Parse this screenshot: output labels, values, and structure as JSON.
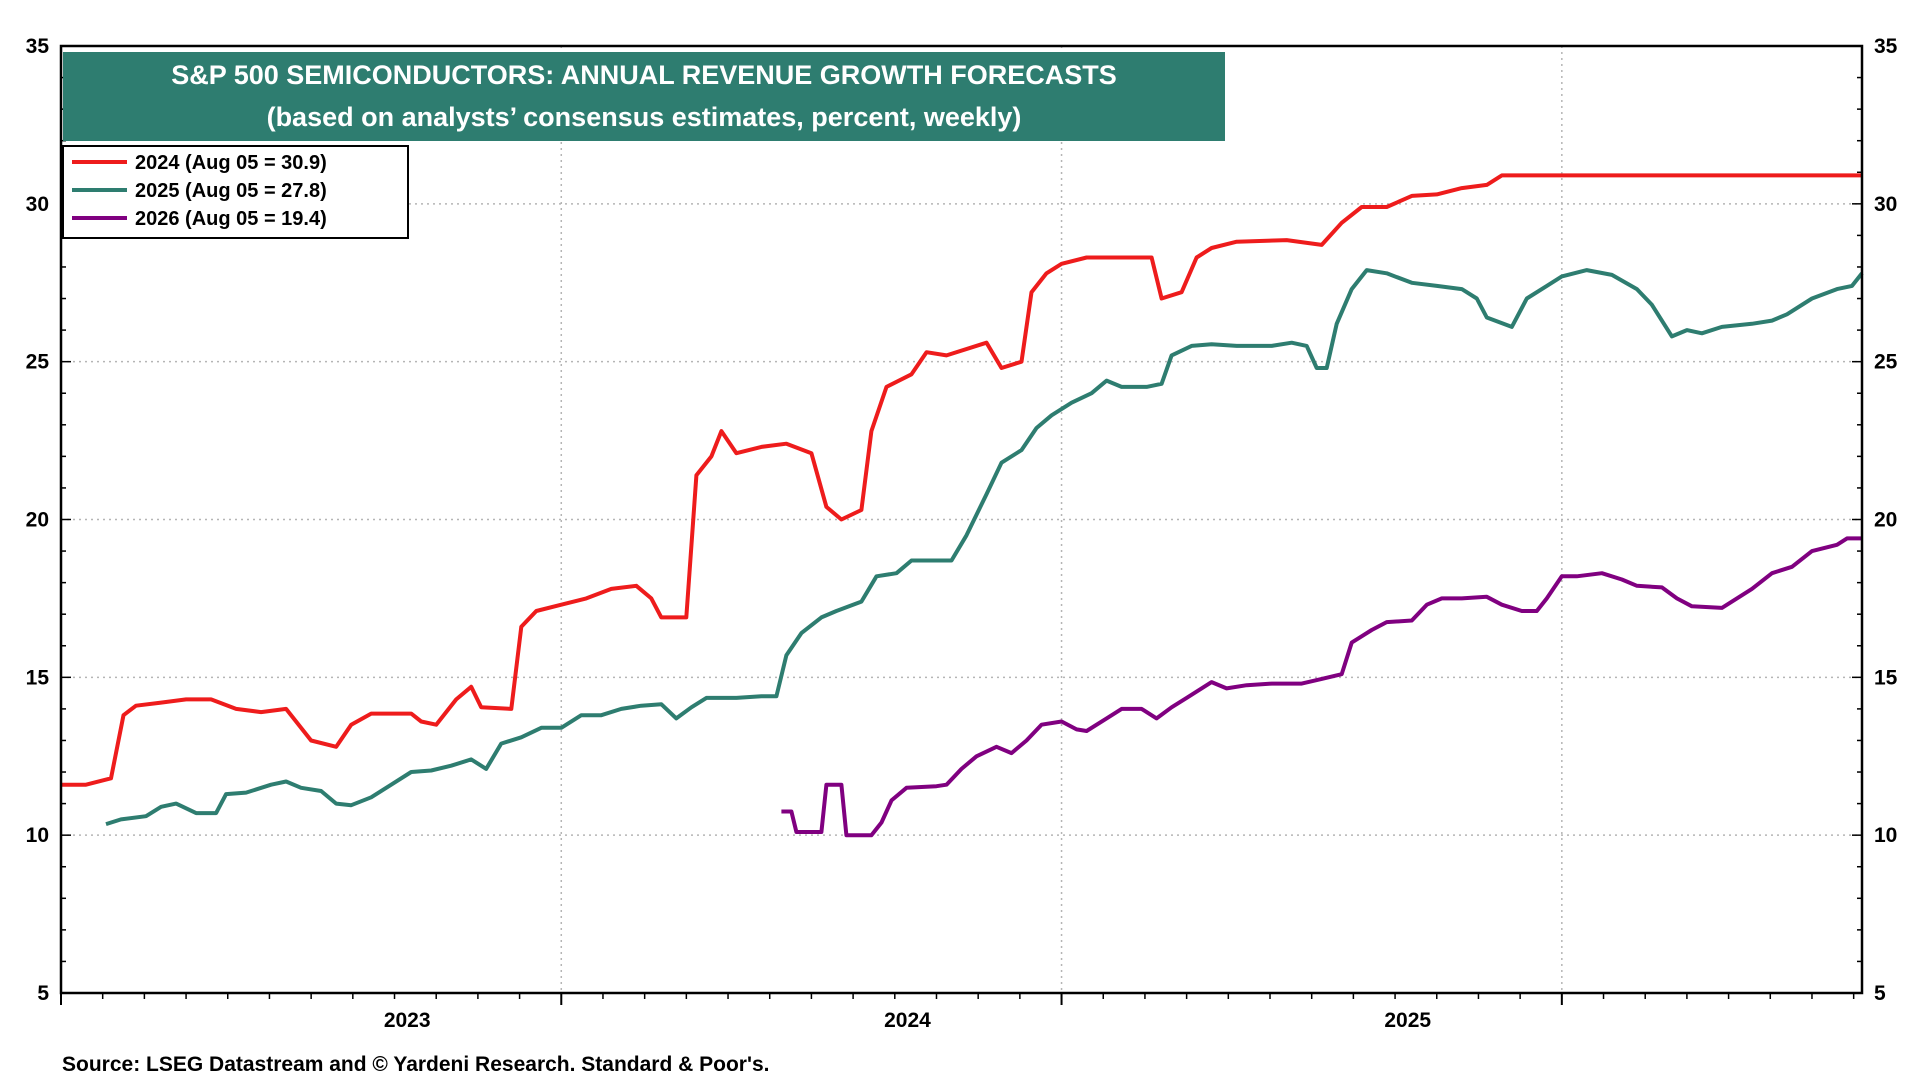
{
  "chart_data": {
    "type": "line",
    "title": "S&P 500 SEMICONDUCTORS: ANNUAL REVENUE GROWTH FORECASTS",
    "subtitle": "(based on analysts’ consensus estimates, percent, weekly)",
    "source": "Source: LSEG Datastream and © Yardeni Research. Standard & Poor's.",
    "xlabel": "",
    "ylabel": "",
    "x_range": [
      2022.0,
      2025.6
    ],
    "ylim": [
      5,
      35
    ],
    "y_ticks": [
      "5",
      "10",
      "15",
      "20",
      "25",
      "30",
      "35"
    ],
    "x_year_labels": [
      {
        "label": "2023",
        "x": 2022.692
      },
      {
        "label": "2024",
        "x": 2023.692
      },
      {
        "label": "2025",
        "x": 2024.692
      }
    ],
    "x_year_boundaries": [
      2022.0,
      2023.0,
      2024.0,
      2025.0
    ],
    "grid": true,
    "legend_position": "top-left",
    "series": [
      {
        "name": "2024",
        "legend": "2024 (Aug 05 = 30.9)",
        "color": "#ee1c1c",
        "points": [
          [
            2022.0,
            11.6
          ],
          [
            2022.05,
            11.6
          ],
          [
            2022.1,
            11.8
          ],
          [
            2022.125,
            13.8
          ],
          [
            2022.15,
            14.1
          ],
          [
            2022.2,
            14.2
          ],
          [
            2022.25,
            14.3
          ],
          [
            2022.3,
            14.3
          ],
          [
            2022.35,
            14.0
          ],
          [
            2022.4,
            13.9
          ],
          [
            2022.45,
            14.0
          ],
          [
            2022.5,
            13.0
          ],
          [
            2022.55,
            12.8
          ],
          [
            2022.58,
            13.5
          ],
          [
            2022.62,
            13.85
          ],
          [
            2022.7,
            13.85
          ],
          [
            2022.72,
            13.6
          ],
          [
            2022.75,
            13.5
          ],
          [
            2022.79,
            14.3
          ],
          [
            2022.82,
            14.7
          ],
          [
            2022.84,
            14.05
          ],
          [
            2022.9,
            14.0
          ],
          [
            2022.92,
            16.6
          ],
          [
            2022.95,
            17.1
          ],
          [
            2023.0,
            17.3
          ],
          [
            2023.05,
            17.5
          ],
          [
            2023.1,
            17.8
          ],
          [
            2023.15,
            17.9
          ],
          [
            2023.18,
            17.5
          ],
          [
            2023.2,
            16.9
          ],
          [
            2023.25,
            16.9
          ],
          [
            2023.27,
            21.4
          ],
          [
            2023.3,
            22.0
          ],
          [
            2023.32,
            22.8
          ],
          [
            2023.35,
            22.1
          ],
          [
            2023.4,
            22.3
          ],
          [
            2023.45,
            22.4
          ],
          [
            2023.5,
            22.1
          ],
          [
            2023.53,
            20.4
          ],
          [
            2023.56,
            20.0
          ],
          [
            2023.6,
            20.3
          ],
          [
            2023.62,
            22.8
          ],
          [
            2023.65,
            24.2
          ],
          [
            2023.7,
            24.6
          ],
          [
            2023.73,
            25.3
          ],
          [
            2023.77,
            25.2
          ],
          [
            2023.85,
            25.6
          ],
          [
            2023.88,
            24.8
          ],
          [
            2023.92,
            25.0
          ],
          [
            2023.94,
            27.2
          ],
          [
            2023.97,
            27.8
          ],
          [
            2024.0,
            28.1
          ],
          [
            2024.05,
            28.3
          ],
          [
            2024.15,
            28.3
          ],
          [
            2024.18,
            28.3
          ],
          [
            2024.2,
            27.0
          ],
          [
            2024.24,
            27.2
          ],
          [
            2024.27,
            28.3
          ],
          [
            2024.3,
            28.6
          ],
          [
            2024.35,
            28.8
          ],
          [
            2024.45,
            28.85
          ],
          [
            2024.52,
            28.7
          ],
          [
            2024.56,
            29.4
          ],
          [
            2024.6,
            29.9
          ],
          [
            2024.65,
            29.9
          ],
          [
            2024.7,
            30.25
          ],
          [
            2024.75,
            30.3
          ],
          [
            2024.8,
            30.5
          ],
          [
            2024.85,
            30.6
          ],
          [
            2024.88,
            30.9
          ],
          [
            2025.0,
            30.9
          ],
          [
            2025.2,
            30.9
          ],
          [
            2025.4,
            30.9
          ],
          [
            2025.6,
            30.9
          ]
        ]
      },
      {
        "name": "2025",
        "legend": "2025 (Aug 05 = 27.8)",
        "color": "#2e7d70",
        "points": [
          [
            2022.09,
            10.35
          ],
          [
            2022.12,
            10.5
          ],
          [
            2022.17,
            10.6
          ],
          [
            2022.2,
            10.9
          ],
          [
            2022.23,
            11.0
          ],
          [
            2022.27,
            10.7
          ],
          [
            2022.31,
            10.7
          ],
          [
            2022.33,
            11.3
          ],
          [
            2022.37,
            11.35
          ],
          [
            2022.42,
            11.6
          ],
          [
            2022.45,
            11.7
          ],
          [
            2022.48,
            11.5
          ],
          [
            2022.52,
            11.4
          ],
          [
            2022.55,
            11.0
          ],
          [
            2022.58,
            10.95
          ],
          [
            2022.62,
            11.2
          ],
          [
            2022.66,
            11.6
          ],
          [
            2022.7,
            12.0
          ],
          [
            2022.74,
            12.05
          ],
          [
            2022.78,
            12.2
          ],
          [
            2022.82,
            12.4
          ],
          [
            2022.85,
            12.1
          ],
          [
            2022.88,
            12.9
          ],
          [
            2022.92,
            13.1
          ],
          [
            2022.96,
            13.4
          ],
          [
            2023.0,
            13.4
          ],
          [
            2023.04,
            13.8
          ],
          [
            2023.08,
            13.8
          ],
          [
            2023.12,
            14.0
          ],
          [
            2023.16,
            14.1
          ],
          [
            2023.2,
            14.15
          ],
          [
            2023.23,
            13.7
          ],
          [
            2023.26,
            14.05
          ],
          [
            2023.29,
            14.35
          ],
          [
            2023.35,
            14.35
          ],
          [
            2023.4,
            14.4
          ],
          [
            2023.43,
            14.4
          ],
          [
            2023.45,
            15.7
          ],
          [
            2023.48,
            16.4
          ],
          [
            2023.52,
            16.9
          ],
          [
            2023.55,
            17.1
          ],
          [
            2023.6,
            17.4
          ],
          [
            2023.63,
            18.2
          ],
          [
            2023.67,
            18.3
          ],
          [
            2023.7,
            18.7
          ],
          [
            2023.78,
            18.7
          ],
          [
            2023.81,
            19.5
          ],
          [
            2023.85,
            20.8
          ],
          [
            2023.88,
            21.8
          ],
          [
            2023.92,
            22.2
          ],
          [
            2023.95,
            22.9
          ],
          [
            2023.98,
            23.3
          ],
          [
            2024.02,
            23.7
          ],
          [
            2024.06,
            24.0
          ],
          [
            2024.09,
            24.4
          ],
          [
            2024.12,
            24.2
          ],
          [
            2024.17,
            24.2
          ],
          [
            2024.2,
            24.3
          ],
          [
            2024.22,
            25.2
          ],
          [
            2024.26,
            25.5
          ],
          [
            2024.3,
            25.55
          ],
          [
            2024.35,
            25.5
          ],
          [
            2024.42,
            25.5
          ],
          [
            2024.46,
            25.6
          ],
          [
            2024.49,
            25.5
          ],
          [
            2024.51,
            24.8
          ],
          [
            2024.53,
            24.8
          ],
          [
            2024.55,
            26.2
          ],
          [
            2024.58,
            27.3
          ],
          [
            2024.61,
            27.9
          ],
          [
            2024.65,
            27.8
          ],
          [
            2024.7,
            27.5
          ],
          [
            2024.75,
            27.4
          ],
          [
            2024.8,
            27.3
          ],
          [
            2024.83,
            27.0
          ],
          [
            2024.85,
            26.4
          ],
          [
            2024.9,
            26.1
          ],
          [
            2024.93,
            27.0
          ],
          [
            2024.97,
            27.4
          ],
          [
            2025.0,
            27.7
          ],
          [
            2025.05,
            27.9
          ],
          [
            2025.1,
            27.75
          ],
          [
            2025.15,
            27.3
          ],
          [
            2025.18,
            26.8
          ],
          [
            2025.22,
            25.8
          ],
          [
            2025.25,
            26.0
          ],
          [
            2025.28,
            25.9
          ],
          [
            2025.32,
            26.1
          ],
          [
            2025.38,
            26.2
          ],
          [
            2025.42,
            26.3
          ],
          [
            2025.45,
            26.5
          ],
          [
            2025.5,
            27.0
          ],
          [
            2025.55,
            27.3
          ],
          [
            2025.58,
            27.4
          ],
          [
            2025.6,
            27.8
          ]
        ]
      },
      {
        "name": "2026",
        "legend": "2026 (Aug 05 = 19.4)",
        "color": "#800080",
        "points": [
          [
            2023.44,
            10.75
          ],
          [
            2023.46,
            10.75
          ],
          [
            2023.47,
            10.1
          ],
          [
            2023.52,
            10.1
          ],
          [
            2023.53,
            11.6
          ],
          [
            2023.56,
            11.6
          ],
          [
            2023.57,
            10.0
          ],
          [
            2023.62,
            10.0
          ],
          [
            2023.64,
            10.4
          ],
          [
            2023.66,
            11.1
          ],
          [
            2023.69,
            11.5
          ],
          [
            2023.75,
            11.55
          ],
          [
            2023.77,
            11.6
          ],
          [
            2023.8,
            12.1
          ],
          [
            2023.83,
            12.5
          ],
          [
            2023.87,
            12.8
          ],
          [
            2023.9,
            12.6
          ],
          [
            2023.93,
            13.0
          ],
          [
            2023.96,
            13.5
          ],
          [
            2024.0,
            13.6
          ],
          [
            2024.03,
            13.35
          ],
          [
            2024.05,
            13.3
          ],
          [
            2024.09,
            13.7
          ],
          [
            2024.12,
            14.0
          ],
          [
            2024.16,
            14.0
          ],
          [
            2024.19,
            13.7
          ],
          [
            2024.22,
            14.05
          ],
          [
            2024.25,
            14.35
          ],
          [
            2024.3,
            14.85
          ],
          [
            2024.33,
            14.65
          ],
          [
            2024.37,
            14.75
          ],
          [
            2024.42,
            14.8
          ],
          [
            2024.48,
            14.8
          ],
          [
            2024.52,
            14.95
          ],
          [
            2024.56,
            15.1
          ],
          [
            2024.58,
            16.1
          ],
          [
            2024.62,
            16.5
          ],
          [
            2024.65,
            16.75
          ],
          [
            2024.7,
            16.8
          ],
          [
            2024.73,
            17.3
          ],
          [
            2024.76,
            17.5
          ],
          [
            2024.8,
            17.5
          ],
          [
            2024.85,
            17.55
          ],
          [
            2024.88,
            17.3
          ],
          [
            2024.92,
            17.1
          ],
          [
            2024.95,
            17.1
          ],
          [
            2024.97,
            17.5
          ],
          [
            2025.0,
            18.2
          ],
          [
            2025.03,
            18.2
          ],
          [
            2025.08,
            18.3
          ],
          [
            2025.12,
            18.1
          ],
          [
            2025.15,
            17.9
          ],
          [
            2025.2,
            17.85
          ],
          [
            2025.23,
            17.5
          ],
          [
            2025.26,
            17.25
          ],
          [
            2025.32,
            17.2
          ],
          [
            2025.35,
            17.5
          ],
          [
            2025.38,
            17.8
          ],
          [
            2025.42,
            18.3
          ],
          [
            2025.46,
            18.5
          ],
          [
            2025.5,
            19.0
          ],
          [
            2025.55,
            19.2
          ],
          [
            2025.57,
            19.4
          ],
          [
            2025.6,
            19.4
          ]
        ]
      }
    ]
  }
}
